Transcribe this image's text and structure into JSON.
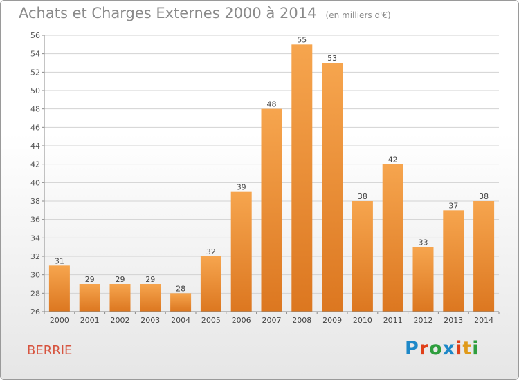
{
  "header": {
    "title": "Achats et Charges Externes 2000 à 2014",
    "subtitle": "(en milliers d'€)"
  },
  "footer": {
    "place": "BERRIE",
    "logo": "Proxiti",
    "logo_colors": [
      "#1e88c8",
      "#e0401a",
      "#2e9e3e",
      "#1e88c8",
      "#e0401a",
      "#e09a1a",
      "#2e9e3e"
    ]
  },
  "colors": {
    "bar_light": "#f6a54e",
    "bar_dark": "#dc7720",
    "place_text": "#d7543f"
  },
  "chart_data": {
    "type": "bar",
    "title": "Achats et Charges Externes 2000 à 2014",
    "subtitle": "(en milliers d'€)",
    "categories": [
      "2000",
      "2001",
      "2002",
      "2003",
      "2004",
      "2005",
      "2006",
      "2007",
      "2008",
      "2009",
      "2010",
      "2011",
      "2012",
      "2013",
      "2014"
    ],
    "values": [
      31,
      29,
      29,
      29,
      28,
      32,
      39,
      48,
      55,
      53,
      38,
      42,
      33,
      37,
      38
    ],
    "ylim": [
      26,
      56
    ],
    "yticks": [
      26,
      28,
      30,
      32,
      34,
      36,
      38,
      40,
      42,
      44,
      46,
      48,
      50,
      52,
      54,
      56
    ],
    "grid": true,
    "data_labels": true
  }
}
